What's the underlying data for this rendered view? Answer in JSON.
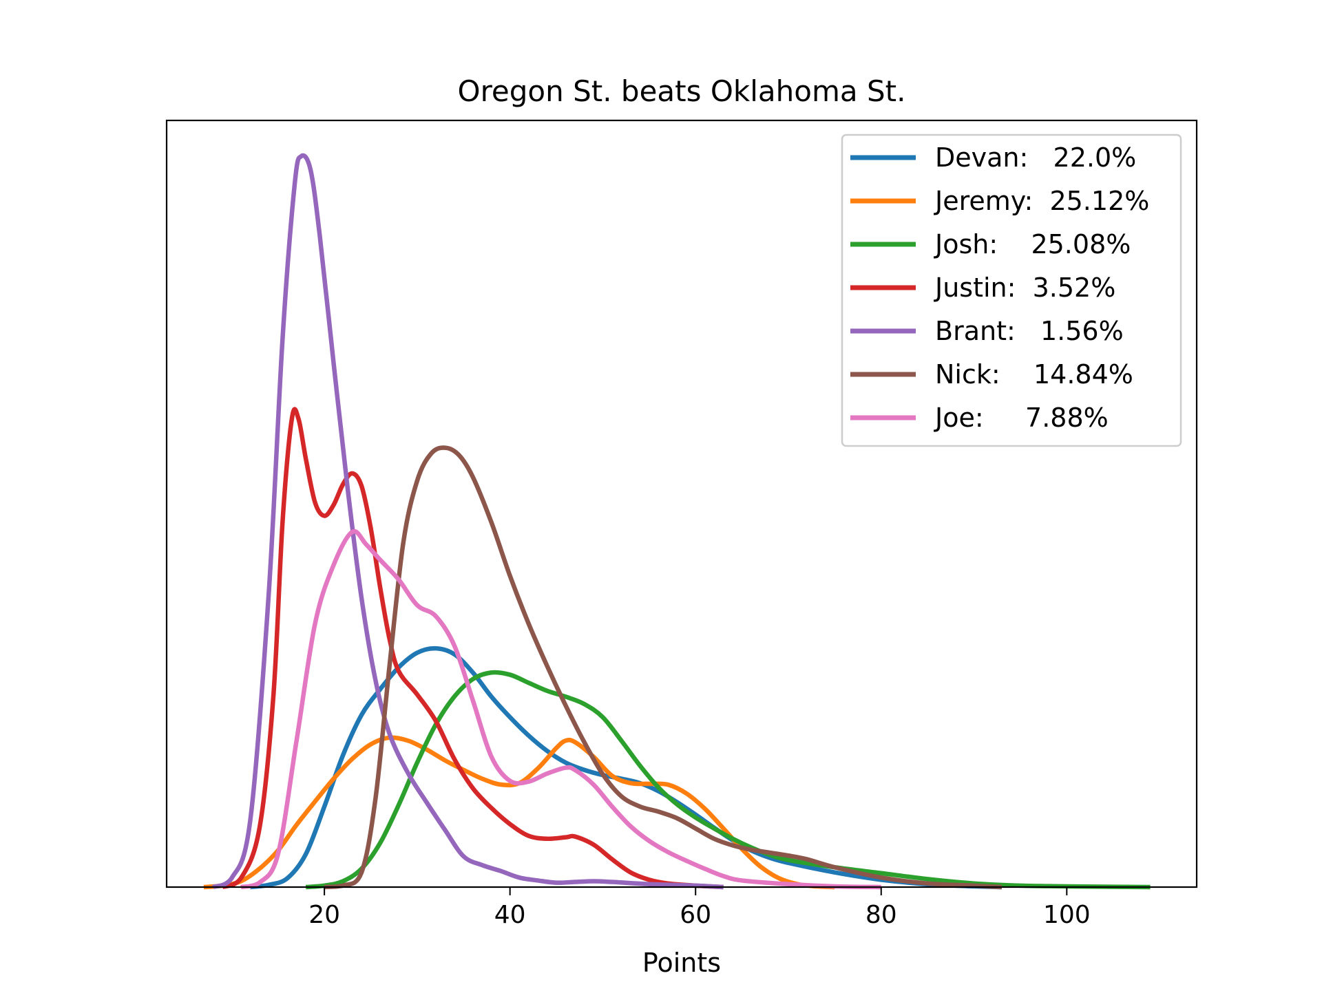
{
  "chart_data": {
    "type": "line",
    "title": "Oregon St. beats Oklahoma St.",
    "xlabel": "Points",
    "ylabel": "",
    "xlim": [
      3,
      114
    ],
    "ylim": [
      0,
      1
    ],
    "xticks": [
      20,
      40,
      60,
      80,
      100
    ],
    "yticks": [],
    "grid": false,
    "legend_position": "top-right",
    "series": [
      {
        "name": "Devan:   22.0%",
        "color": "#1f77b4",
        "points": [
          [
            12,
            0
          ],
          [
            14,
            0.003
          ],
          [
            16,
            0.012
          ],
          [
            18,
            0.045
          ],
          [
            20,
            0.11
          ],
          [
            22,
            0.18
          ],
          [
            24,
            0.235
          ],
          [
            26,
            0.27
          ],
          [
            28,
            0.3
          ],
          [
            30,
            0.32
          ],
          [
            32,
            0.326
          ],
          [
            34,
            0.318
          ],
          [
            36,
            0.293
          ],
          [
            38,
            0.26
          ],
          [
            40,
            0.232
          ],
          [
            42,
            0.207
          ],
          [
            44,
            0.186
          ],
          [
            46,
            0.17
          ],
          [
            48,
            0.16
          ],
          [
            50,
            0.153
          ],
          [
            52,
            0.148
          ],
          [
            54,
            0.142
          ],
          [
            56,
            0.131
          ],
          [
            58,
            0.116
          ],
          [
            60,
            0.099
          ],
          [
            62,
            0.081
          ],
          [
            64,
            0.064
          ],
          [
            66,
            0.05
          ],
          [
            68,
            0.04
          ],
          [
            70,
            0.033
          ],
          [
            75,
            0.02
          ],
          [
            80,
            0.01
          ],
          [
            85,
            0.004
          ],
          [
            90,
            0.001
          ],
          [
            93,
            0
          ]
        ]
      },
      {
        "name": "Jeremy:  25.12%",
        "color": "#ff7f0e",
        "points": [
          [
            7,
            0
          ],
          [
            9,
            0.002
          ],
          [
            11,
            0.008
          ],
          [
            13,
            0.025
          ],
          [
            15,
            0.05
          ],
          [
            17,
            0.085
          ],
          [
            19,
            0.117
          ],
          [
            21,
            0.148
          ],
          [
            23,
            0.175
          ],
          [
            25,
            0.195
          ],
          [
            27,
            0.204
          ],
          [
            29,
            0.2
          ],
          [
            31,
            0.188
          ],
          [
            33,
            0.173
          ],
          [
            35,
            0.16
          ],
          [
            37,
            0.148
          ],
          [
            39,
            0.14
          ],
          [
            41,
            0.142
          ],
          [
            43,
            0.162
          ],
          [
            45,
            0.19
          ],
          [
            46,
            0.2
          ],
          [
            47,
            0.198
          ],
          [
            49,
            0.178
          ],
          [
            51,
            0.152
          ],
          [
            53,
            0.142
          ],
          [
            55,
            0.141
          ],
          [
            57,
            0.14
          ],
          [
            59,
            0.128
          ],
          [
            61,
            0.107
          ],
          [
            63,
            0.08
          ],
          [
            65,
            0.052
          ],
          [
            67,
            0.028
          ],
          [
            69,
            0.012
          ],
          [
            71,
            0.004
          ],
          [
            73,
            0.001
          ],
          [
            75,
            0
          ]
        ]
      },
      {
        "name": "Josh:    25.08%",
        "color": "#2ca02c",
        "points": [
          [
            18,
            0
          ],
          [
            20,
            0.002
          ],
          [
            22,
            0.008
          ],
          [
            24,
            0.025
          ],
          [
            26,
            0.06
          ],
          [
            28,
            0.112
          ],
          [
            30,
            0.17
          ],
          [
            32,
            0.222
          ],
          [
            34,
            0.26
          ],
          [
            36,
            0.284
          ],
          [
            38,
            0.293
          ],
          [
            40,
            0.29
          ],
          [
            42,
            0.279
          ],
          [
            44,
            0.268
          ],
          [
            46,
            0.26
          ],
          [
            48,
            0.25
          ],
          [
            50,
            0.232
          ],
          [
            52,
            0.2
          ],
          [
            54,
            0.166
          ],
          [
            56,
            0.136
          ],
          [
            58,
            0.113
          ],
          [
            60,
            0.095
          ],
          [
            62,
            0.08
          ],
          [
            64,
            0.066
          ],
          [
            66,
            0.054
          ],
          [
            68,
            0.044
          ],
          [
            70,
            0.037
          ],
          [
            75,
            0.027
          ],
          [
            80,
            0.019
          ],
          [
            85,
            0.011
          ],
          [
            90,
            0.005
          ],
          [
            95,
            0.002
          ],
          [
            100,
            0.001
          ],
          [
            109,
            0
          ]
        ]
      },
      {
        "name": "Justin:  3.52%",
        "color": "#d62728",
        "points": [
          [
            9,
            0
          ],
          [
            11,
            0.012
          ],
          [
            13,
            0.08
          ],
          [
            14.5,
            0.26
          ],
          [
            15.5,
            0.5
          ],
          [
            16.5,
            0.64
          ],
          [
            17.2,
            0.64
          ],
          [
            18,
            0.585
          ],
          [
            19,
            0.525
          ],
          [
            20,
            0.507
          ],
          [
            21,
            0.522
          ],
          [
            22,
            0.55
          ],
          [
            23,
            0.565
          ],
          [
            24,
            0.548
          ],
          [
            25,
            0.49
          ],
          [
            26,
            0.41
          ],
          [
            27,
            0.34
          ],
          [
            28,
            0.295
          ],
          [
            30,
            0.263
          ],
          [
            32,
            0.227
          ],
          [
            34,
            0.175
          ],
          [
            36,
            0.135
          ],
          [
            38,
            0.108
          ],
          [
            40,
            0.086
          ],
          [
            42,
            0.07
          ],
          [
            44,
            0.066
          ],
          [
            46,
            0.068
          ],
          [
            47,
            0.069
          ],
          [
            49,
            0.058
          ],
          [
            51,
            0.038
          ],
          [
            53,
            0.02
          ],
          [
            55,
            0.01
          ],
          [
            57,
            0.005
          ],
          [
            60,
            0.002
          ],
          [
            63,
            0
          ]
        ]
      },
      {
        "name": "Brant:   1.56%",
        "color": "#9467bd",
        "points": [
          [
            8,
            0
          ],
          [
            10,
            0.012
          ],
          [
            12,
            0.09
          ],
          [
            14,
            0.4
          ],
          [
            15.5,
            0.75
          ],
          [
            16.8,
            0.96
          ],
          [
            17.5,
            0.998
          ],
          [
            18.5,
            0.98
          ],
          [
            19.5,
            0.89
          ],
          [
            21,
            0.715
          ],
          [
            22.5,
            0.545
          ],
          [
            24,
            0.395
          ],
          [
            25.5,
            0.283
          ],
          [
            27,
            0.21
          ],
          [
            29,
            0.156
          ],
          [
            31,
            0.116
          ],
          [
            33,
            0.078
          ],
          [
            35,
            0.042
          ],
          [
            37,
            0.03
          ],
          [
            39,
            0.022
          ],
          [
            41,
            0.013
          ],
          [
            43,
            0.009
          ],
          [
            45,
            0.006
          ],
          [
            47,
            0.007
          ],
          [
            49,
            0.008
          ],
          [
            51,
            0.007
          ],
          [
            55,
            0.004
          ],
          [
            60,
            0.002
          ],
          [
            63,
            0
          ]
        ]
      },
      {
        "name": "Nick:    14.84%",
        "color": "#8c564b",
        "points": [
          [
            20,
            0
          ],
          [
            22,
            0.002
          ],
          [
            24,
            0.02
          ],
          [
            25.5,
            0.12
          ],
          [
            27,
            0.3
          ],
          [
            28.5,
            0.47
          ],
          [
            30,
            0.555
          ],
          [
            31.5,
            0.592
          ],
          [
            33,
            0.6
          ],
          [
            34.5,
            0.59
          ],
          [
            36,
            0.56
          ],
          [
            38,
            0.498
          ],
          [
            40,
            0.425
          ],
          [
            42,
            0.36
          ],
          [
            44,
            0.302
          ],
          [
            46,
            0.248
          ],
          [
            48,
            0.198
          ],
          [
            50,
            0.154
          ],
          [
            52,
            0.124
          ],
          [
            54,
            0.11
          ],
          [
            56,
            0.103
          ],
          [
            58,
            0.094
          ],
          [
            60,
            0.08
          ],
          [
            62,
            0.066
          ],
          [
            64,
            0.057
          ],
          [
            66,
            0.051
          ],
          [
            68,
            0.047
          ],
          [
            70,
            0.043
          ],
          [
            72,
            0.038
          ],
          [
            75,
            0.027
          ],
          [
            80,
            0.013
          ],
          [
            85,
            0.005
          ],
          [
            90,
            0.002
          ],
          [
            93,
            0
          ]
        ]
      },
      {
        "name": "Joe:     7.88%",
        "color": "#e377c2",
        "points": [
          [
            11,
            0
          ],
          [
            13,
            0.006
          ],
          [
            15,
            0.045
          ],
          [
            17,
            0.2
          ],
          [
            19,
            0.36
          ],
          [
            21,
            0.44
          ],
          [
            23,
            0.485
          ],
          [
            24.5,
            0.468
          ],
          [
            26,
            0.447
          ],
          [
            28,
            0.42
          ],
          [
            30,
            0.385
          ],
          [
            32,
            0.37
          ],
          [
            34,
            0.33
          ],
          [
            36,
            0.255
          ],
          [
            38,
            0.178
          ],
          [
            40,
            0.145
          ],
          [
            42,
            0.144
          ],
          [
            44,
            0.155
          ],
          [
            46,
            0.163
          ],
          [
            47,
            0.16
          ],
          [
            49,
            0.14
          ],
          [
            51,
            0.11
          ],
          [
            53,
            0.083
          ],
          [
            55,
            0.063
          ],
          [
            57,
            0.048
          ],
          [
            59,
            0.036
          ],
          [
            61,
            0.025
          ],
          [
            63,
            0.015
          ],
          [
            65,
            0.009
          ],
          [
            70,
            0.004
          ],
          [
            75,
            0.001
          ],
          [
            80,
            0
          ]
        ]
      }
    ]
  }
}
